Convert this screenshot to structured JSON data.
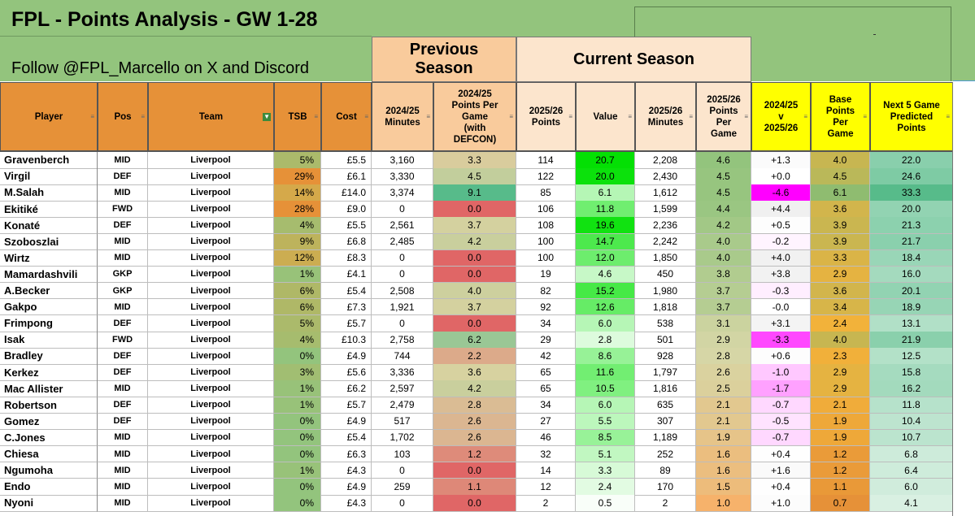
{
  "title": "FPL - Points Analysis - GW 1-28",
  "subtitle": "Follow @FPL_Marcello on X and Discord",
  "groups": {
    "previous": "Previous\nSeason",
    "current": "Current Season"
  },
  "colors": {
    "band": "#93c47d",
    "orange": "#e69138",
    "prev_header": "#f9cb9c",
    "cur_header": "#fce5cd",
    "yellow": "#ffff00"
  },
  "columns": [
    {
      "key": "player",
      "label": "Player",
      "filter_icon": "filter-arrow-icon"
    },
    {
      "key": "pos",
      "label": "Pos",
      "filter_icon": "filter-arrow-icon"
    },
    {
      "key": "team",
      "label": "Team",
      "filter_icon": "filter-active-icon"
    },
    {
      "key": "tsb",
      "label": "TSB",
      "filter_icon": "filter-arrow-icon"
    },
    {
      "key": "cost",
      "label": "Cost",
      "filter_icon": "filter-arrow-icon"
    },
    {
      "key": "min24",
      "label": "2024/25\nMinutes",
      "filter_icon": "filter-arrow-icon"
    },
    {
      "key": "ppg24",
      "label": "2024/25\nPoints Per\nGame\n(with\nDEFCON)",
      "filter_icon": "filter-arrow-icon"
    },
    {
      "key": "pts25",
      "label": "2025/26\nPoints",
      "filter_icon": "filter-arrow-icon"
    },
    {
      "key": "value",
      "label": "Value",
      "filter_icon": "filter-arrow-icon"
    },
    {
      "key": "min25",
      "label": "2025/26\nMinutes",
      "filter_icon": "filter-arrow-icon"
    },
    {
      "key": "ppg25",
      "label": "2025/26\nPoints\nPer\nGame",
      "filter_icon": "filter-arrow-icon"
    },
    {
      "key": "diff",
      "label": "2024/25\nv\n2025/26",
      "filter_icon": "filter-arrow-icon"
    },
    {
      "key": "base",
      "label": "Base\nPoints\nPer\nGame",
      "filter_icon": "filter-arrow-icon"
    },
    {
      "key": "next5",
      "label": "Next 5 Game\nPredicted\nPoints",
      "filter_icon": "filter-arrow-icon"
    }
  ],
  "rows": [
    {
      "player": "Gravenberch",
      "pos": "MID",
      "team": "Liverpool",
      "tsb": "5%",
      "cost": "£5.5",
      "min24": "3,160",
      "ppg24": "3.3",
      "pts25": "114",
      "value": "20.7",
      "min25": "2,208",
      "ppg25": "4.6",
      "diff": "+1.3",
      "base": "4.0",
      "next5": "22.0"
    },
    {
      "player": "Virgil",
      "pos": "DEF",
      "team": "Liverpool",
      "tsb": "29%",
      "cost": "£6.1",
      "min24": "3,330",
      "ppg24": "4.5",
      "pts25": "122",
      "value": "20.0",
      "min25": "2,430",
      "ppg25": "4.5",
      "diff": "+0.0",
      "base": "4.5",
      "next5": "24.6"
    },
    {
      "player": "M.Salah",
      "pos": "MID",
      "team": "Liverpool",
      "tsb": "14%",
      "cost": "£14.0",
      "min24": "3,374",
      "ppg24": "9.1",
      "pts25": "85",
      "value": "6.1",
      "min25": "1,612",
      "ppg25": "4.5",
      "diff": "-4.6",
      "base": "6.1",
      "next5": "33.3"
    },
    {
      "player": "Ekitiké",
      "pos": "FWD",
      "team": "Liverpool",
      "tsb": "28%",
      "cost": "£9.0",
      "min24": "0",
      "ppg24": "0.0",
      "pts25": "106",
      "value": "11.8",
      "min25": "1,599",
      "ppg25": "4.4",
      "diff": "+4.4",
      "base": "3.6",
      "next5": "20.0"
    },
    {
      "player": "Konaté",
      "pos": "DEF",
      "team": "Liverpool",
      "tsb": "4%",
      "cost": "£5.5",
      "min24": "2,561",
      "ppg24": "3.7",
      "pts25": "108",
      "value": "19.6",
      "min25": "2,236",
      "ppg25": "4.2",
      "diff": "+0.5",
      "base": "3.9",
      "next5": "21.3"
    },
    {
      "player": "Szoboszlai",
      "pos": "MID",
      "team": "Liverpool",
      "tsb": "9%",
      "cost": "£6.8",
      "min24": "2,485",
      "ppg24": "4.2",
      "pts25": "100",
      "value": "14.7",
      "min25": "2,242",
      "ppg25": "4.0",
      "diff": "-0.2",
      "base": "3.9",
      "next5": "21.7"
    },
    {
      "player": "Wirtz",
      "pos": "MID",
      "team": "Liverpool",
      "tsb": "12%",
      "cost": "£8.3",
      "min24": "0",
      "ppg24": "0.0",
      "pts25": "100",
      "value": "12.0",
      "min25": "1,850",
      "ppg25": "4.0",
      "diff": "+4.0",
      "base": "3.3",
      "next5": "18.4"
    },
    {
      "player": "Mamardashvili",
      "pos": "GKP",
      "team": "Liverpool",
      "tsb": "1%",
      "cost": "£4.1",
      "min24": "0",
      "ppg24": "0.0",
      "pts25": "19",
      "value": "4.6",
      "min25": "450",
      "ppg25": "3.8",
      "diff": "+3.8",
      "base": "2.9",
      "next5": "16.0"
    },
    {
      "player": "A.Becker",
      "pos": "GKP",
      "team": "Liverpool",
      "tsb": "6%",
      "cost": "£5.4",
      "min24": "2,508",
      "ppg24": "4.0",
      "pts25": "82",
      "value": "15.2",
      "min25": "1,980",
      "ppg25": "3.7",
      "diff": "-0.3",
      "base": "3.6",
      "next5": "20.1"
    },
    {
      "player": "Gakpo",
      "pos": "MID",
      "team": "Liverpool",
      "tsb": "6%",
      "cost": "£7.3",
      "min24": "1,921",
      "ppg24": "3.7",
      "pts25": "92",
      "value": "12.6",
      "min25": "1,818",
      "ppg25": "3.7",
      "diff": "-0.0",
      "base": "3.4",
      "next5": "18.9"
    },
    {
      "player": "Frimpong",
      "pos": "DEF",
      "team": "Liverpool",
      "tsb": "5%",
      "cost": "£5.7",
      "min24": "0",
      "ppg24": "0.0",
      "pts25": "34",
      "value": "6.0",
      "min25": "538",
      "ppg25": "3.1",
      "diff": "+3.1",
      "base": "2.4",
      "next5": "13.1"
    },
    {
      "player": "Isak",
      "pos": "FWD",
      "team": "Liverpool",
      "tsb": "4%",
      "cost": "£10.3",
      "min24": "2,758",
      "ppg24": "6.2",
      "pts25": "29",
      "value": "2.8",
      "min25": "501",
      "ppg25": "2.9",
      "diff": "-3.3",
      "base": "4.0",
      "next5": "21.9"
    },
    {
      "player": "Bradley",
      "pos": "DEF",
      "team": "Liverpool",
      "tsb": "0%",
      "cost": "£4.9",
      "min24": "744",
      "ppg24": "2.2",
      "pts25": "42",
      "value": "8.6",
      "min25": "928",
      "ppg25": "2.8",
      "diff": "+0.6",
      "base": "2.3",
      "next5": "12.5"
    },
    {
      "player": "Kerkez",
      "pos": "DEF",
      "team": "Liverpool",
      "tsb": "3%",
      "cost": "£5.6",
      "min24": "3,336",
      "ppg24": "3.6",
      "pts25": "65",
      "value": "11.6",
      "min25": "1,797",
      "ppg25": "2.6",
      "diff": "-1.0",
      "base": "2.9",
      "next5": "15.8"
    },
    {
      "player": "Mac Allister",
      "pos": "MID",
      "team": "Liverpool",
      "tsb": "1%",
      "cost": "£6.2",
      "min24": "2,597",
      "ppg24": "4.2",
      "pts25": "65",
      "value": "10.5",
      "min25": "1,816",
      "ppg25": "2.5",
      "diff": "-1.7",
      "base": "2.9",
      "next5": "16.2"
    },
    {
      "player": "Robertson",
      "pos": "DEF",
      "team": "Liverpool",
      "tsb": "1%",
      "cost": "£5.7",
      "min24": "2,479",
      "ppg24": "2.8",
      "pts25": "34",
      "value": "6.0",
      "min25": "635",
      "ppg25": "2.1",
      "diff": "-0.7",
      "base": "2.1",
      "next5": "11.8"
    },
    {
      "player": "Gomez",
      "pos": "DEF",
      "team": "Liverpool",
      "tsb": "0%",
      "cost": "£4.9",
      "min24": "517",
      "ppg24": "2.6",
      "pts25": "27",
      "value": "5.5",
      "min25": "307",
      "ppg25": "2.1",
      "diff": "-0.5",
      "base": "1.9",
      "next5": "10.4"
    },
    {
      "player": "C.Jones",
      "pos": "MID",
      "team": "Liverpool",
      "tsb": "0%",
      "cost": "£5.4",
      "min24": "1,702",
      "ppg24": "2.6",
      "pts25": "46",
      "value": "8.5",
      "min25": "1,189",
      "ppg25": "1.9",
      "diff": "-0.7",
      "base": "1.9",
      "next5": "10.7"
    },
    {
      "player": "Chiesa",
      "pos": "MID",
      "team": "Liverpool",
      "tsb": "0%",
      "cost": "£6.3",
      "min24": "103",
      "ppg24": "1.2",
      "pts25": "32",
      "value": "5.1",
      "min25": "252",
      "ppg25": "1.6",
      "diff": "+0.4",
      "base": "1.2",
      "next5": "6.8"
    },
    {
      "player": "Ngumoha",
      "pos": "MID",
      "team": "Liverpool",
      "tsb": "1%",
      "cost": "£4.3",
      "min24": "0",
      "ppg24": "0.0",
      "pts25": "14",
      "value": "3.3",
      "min25": "89",
      "ppg25": "1.6",
      "diff": "+1.6",
      "base": "1.2",
      "next5": "6.4"
    },
    {
      "player": "Endo",
      "pos": "MID",
      "team": "Liverpool",
      "tsb": "0%",
      "cost": "£4.9",
      "min24": "259",
      "ppg24": "1.1",
      "pts25": "12",
      "value": "2.4",
      "min25": "170",
      "ppg25": "1.5",
      "diff": "+0.4",
      "base": "1.1",
      "next5": "6.0"
    },
    {
      "player": "Nyoni",
      "pos": "MID",
      "team": "Liverpool",
      "tsb": "0%",
      "cost": "£4.3",
      "min24": "0",
      "ppg24": "0.0",
      "pts25": "2",
      "value": "0.5",
      "min25": "2",
      "ppg25": "1.0",
      "diff": "+1.0",
      "base": "0.7",
      "next5": "4.1"
    }
  ]
}
